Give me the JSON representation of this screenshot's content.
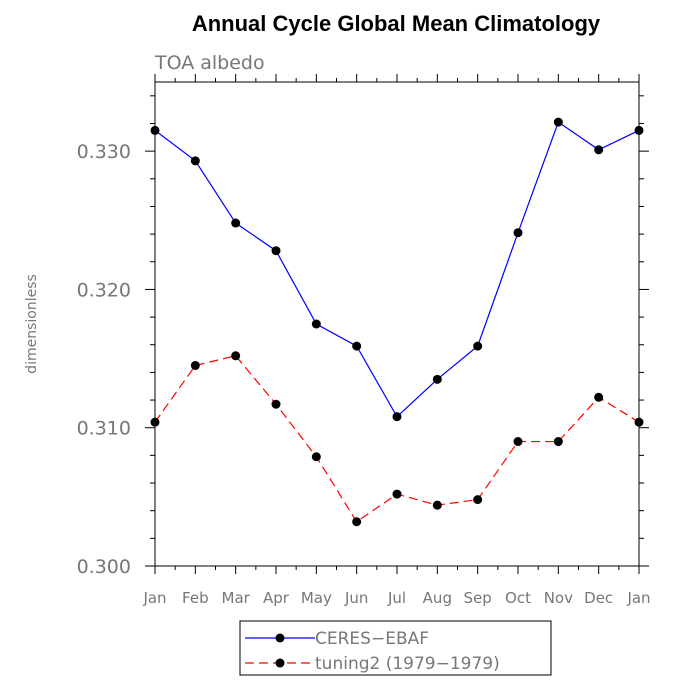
{
  "chart_data": {
    "type": "line",
    "title": "Annual Cycle Global Mean Climatology",
    "subtitle": "TOA albedo",
    "xlabel": "",
    "ylabel": "dimensionless",
    "categories": [
      "Jan",
      "Feb",
      "Mar",
      "Apr",
      "May",
      "Jun",
      "Jul",
      "Aug",
      "Sep",
      "Oct",
      "Nov",
      "Dec",
      "Jan"
    ],
    "ylim": [
      0.3,
      0.335
    ],
    "yticks": [
      "0.300",
      "0.310",
      "0.320",
      "0.330"
    ],
    "ytick_values": [
      0.3,
      0.31,
      0.32,
      0.33
    ],
    "series": [
      {
        "name": "CERES−EBAF",
        "color": "#0000ff",
        "dash": "solid",
        "values": [
          0.3315,
          0.3293,
          0.3248,
          0.3228,
          0.3175,
          0.3159,
          0.3108,
          0.3135,
          0.3159,
          0.3241,
          0.3321,
          0.3301,
          0.3315
        ]
      },
      {
        "name": "tuning2 (1979−1979)",
        "color": "#ff0000",
        "dash": "dashed",
        "values": [
          0.3104,
          0.3145,
          0.3152,
          0.3117,
          0.3079,
          0.3032,
          0.3052,
          0.3044,
          0.3048,
          0.309,
          0.309,
          0.3122,
          0.3104
        ]
      }
    ],
    "marker": "filled-circle",
    "marker_color": "#000000",
    "legend_position": "bottom"
  }
}
